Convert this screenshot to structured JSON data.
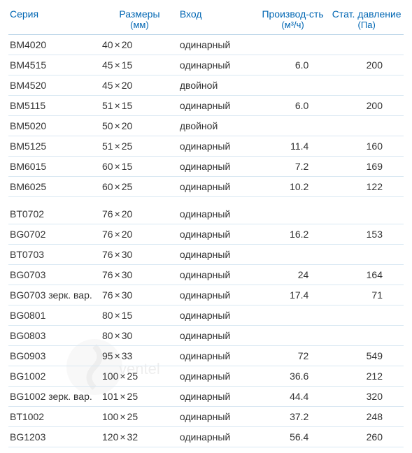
{
  "headers": {
    "series": "Серия",
    "dimensions": "Размеры",
    "dimensions_unit": "(мм)",
    "entry": "Вход",
    "performance": "Производ-сть",
    "performance_unit": "(м³/ч)",
    "pressure": "Стат. давление",
    "pressure_unit": "(Па)"
  },
  "colors": {
    "header_text": "#0066b3",
    "body_text": "#333333",
    "header_border": "#b8d4e8",
    "row_border": "#d9e8f3",
    "background": "#ffffff"
  },
  "typography": {
    "font_family": "Arial",
    "header_fontsize": 14,
    "body_fontsize": 14
  },
  "column_widths": {
    "series": 125,
    "dimensions": 105,
    "entry": 105,
    "performance": 100,
    "pressure": 100
  },
  "groups": [
    {
      "rows": [
        {
          "series": "BM4020",
          "dim_w": "40",
          "dim_h": "20",
          "entry": "одинарный",
          "perf": "",
          "press": ""
        },
        {
          "series": "BM4515",
          "dim_w": "45",
          "dim_h": "15",
          "entry": "одинарный",
          "perf": "6.0",
          "press": "200"
        },
        {
          "series": "BM4520",
          "dim_w": "45",
          "dim_h": "20",
          "entry": "двойной",
          "perf": "",
          "press": ""
        },
        {
          "series": "BM5115",
          "dim_w": "51",
          "dim_h": "15",
          "entry": "одинарный",
          "perf": "6.0",
          "press": "200"
        },
        {
          "series": "BM5020",
          "dim_w": "50",
          "dim_h": "20",
          "entry": "двойной",
          "perf": "",
          "press": ""
        },
        {
          "series": "BM5125",
          "dim_w": "51",
          "dim_h": "25",
          "entry": "одинарный",
          "perf": "11.4",
          "press": "160"
        },
        {
          "series": "BM6015",
          "dim_w": "60",
          "dim_h": "15",
          "entry": "одинарный",
          "perf": "7.2",
          "press": "169"
        },
        {
          "series": "BM6025",
          "dim_w": "60",
          "dim_h": "25",
          "entry": "одинарный",
          "perf": "10.2",
          "press": "122"
        }
      ]
    },
    {
      "rows": [
        {
          "series": "BT0702",
          "dim_w": "76",
          "dim_h": "20",
          "entry": "одинарный",
          "perf": "",
          "press": ""
        },
        {
          "series": "BG0702",
          "dim_w": "76",
          "dim_h": "20",
          "entry": "одинарный",
          "perf": "16.2",
          "press": "153"
        },
        {
          "series": "BT0703",
          "dim_w": "76",
          "dim_h": "30",
          "entry": "одинарный",
          "perf": "",
          "press": ""
        },
        {
          "series": "BG0703",
          "dim_w": "76",
          "dim_h": "30",
          "entry": "одинарный",
          "perf": "24",
          "press": "164"
        },
        {
          "series": "BG0703 зерк. вар.",
          "dim_w": "76",
          "dim_h": "30",
          "entry": "одинарный",
          "perf": "17.4",
          "press": "71"
        },
        {
          "series": "BG0801",
          "dim_w": "80",
          "dim_h": "15",
          "entry": "одинарный",
          "perf": "",
          "press": ""
        },
        {
          "series": "BG0803",
          "dim_w": "80",
          "dim_h": "30",
          "entry": "одинарный",
          "perf": "",
          "press": ""
        },
        {
          "series": "BG0903",
          "dim_w": "95",
          "dim_h": "33",
          "entry": "одинарный",
          "perf": "72",
          "press": "549"
        },
        {
          "series": "BG1002",
          "dim_w": "100",
          "dim_h": "25",
          "entry": "одинарный",
          "perf": "36.6",
          "press": "212"
        },
        {
          "series": "BG1002 зерк. вар.",
          "dim_w": "101",
          "dim_h": "25",
          "entry": "одинарный",
          "perf": "44.4",
          "press": "320"
        },
        {
          "series": "BT1002",
          "dim_w": "100",
          "dim_h": "25",
          "entry": "одинарный",
          "perf": "37.2",
          "press": "248"
        },
        {
          "series": "BG1203",
          "dim_w": "120",
          "dim_h": "32",
          "entry": "одинарный",
          "perf": "56.4",
          "press": "260"
        }
      ]
    }
  ],
  "watermark": {
    "text": "ventel",
    "color": "#888888"
  }
}
